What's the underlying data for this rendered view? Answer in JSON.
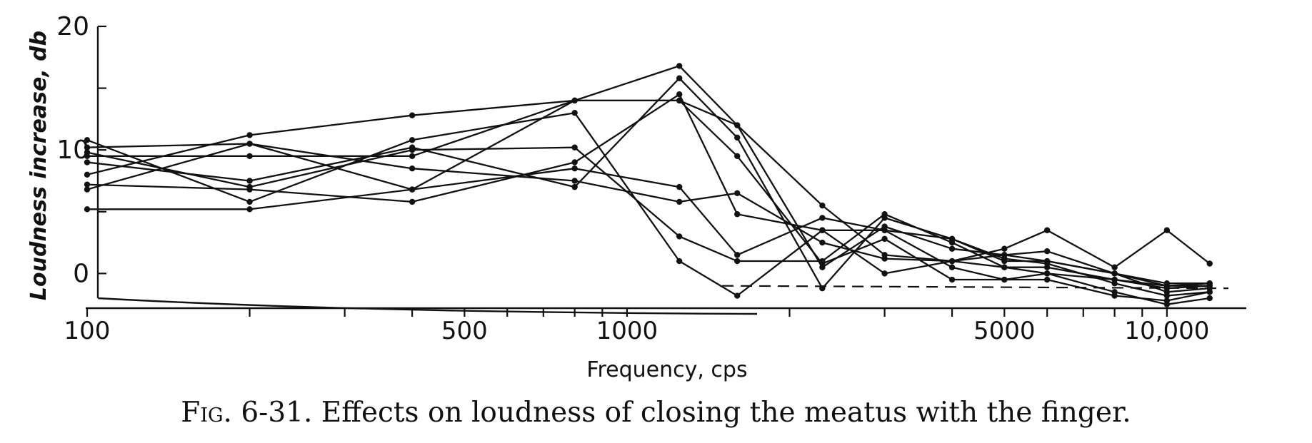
{
  "chart_data": {
    "type": "line",
    "title": "",
    "xlabel": "Frequency, cps",
    "ylabel": "Loudness increase, db",
    "x_scale": "log",
    "xlim": [
      100,
      13000
    ],
    "ylim": [
      -2,
      20
    ],
    "x_tick_labels": [
      {
        "value": 100,
        "label": "100"
      },
      {
        "value": 500,
        "label": "500"
      },
      {
        "value": 1000,
        "label": "1000"
      },
      {
        "value": 5000,
        "label": "5000"
      },
      {
        "value": 10000,
        "label": "10,000"
      }
    ],
    "x_minor_ticks": [
      200,
      300,
      400,
      600,
      700,
      800,
      900,
      2000,
      3000,
      4000,
      6000,
      7000,
      8000,
      9000
    ],
    "y_tick_labels": [
      {
        "value": 0,
        "label": "0"
      },
      {
        "value": 10,
        "label": "10"
      },
      {
        "value": 20,
        "label": "20"
      }
    ],
    "y_minor_ticks": [
      5,
      15
    ],
    "reference_line": {
      "style": "dashed",
      "x": [
        1500,
        13000
      ],
      "y": [
        -1.0,
        -1.2
      ]
    },
    "series": [
      {
        "x": [
          100,
          200,
          400,
          800,
          1250,
          1600,
          2300,
          3000,
          4000,
          5000,
          6000,
          8000,
          10000,
          12000
        ],
        "y": [
          10.8,
          5.8,
          10.8,
          13.0,
          1.0,
          -1.8,
          3.5,
          3.5,
          0.5,
          -0.5,
          -0.5,
          -1.8,
          -2.2,
          -1.5
        ]
      },
      {
        "x": [
          100,
          200,
          400,
          800,
          1250,
          1600,
          2300,
          3000,
          4000,
          5000,
          6000,
          8000,
          10000,
          12000
        ],
        "y": [
          10.2,
          10.5,
          6.8,
          14.0,
          14.0,
          12.0,
          5.5,
          1.5,
          1.0,
          0.5,
          0.5,
          -0.5,
          -1.0,
          -0.8
        ]
      },
      {
        "x": [
          100,
          200,
          400,
          800,
          1250,
          1600,
          2300,
          3000,
          4000,
          5000,
          6000,
          8000,
          10000,
          12000
        ],
        "y": [
          9.8,
          7.0,
          10.0,
          10.2,
          3.0,
          1.0,
          1.0,
          4.8,
          2.5,
          0.5,
          0.0,
          -0.5,
          -1.2,
          -1.0
        ]
      },
      {
        "x": [
          100,
          200,
          400,
          800,
          1250,
          1600,
          2300,
          3000,
          4000,
          5000,
          6000,
          8000,
          10000,
          12000
        ],
        "y": [
          9.5,
          9.5,
          9.5,
          14.0,
          16.8,
          12.0,
          0.5,
          3.8,
          2.0,
          1.5,
          1.8,
          0.0,
          -1.5,
          -1.2
        ]
      },
      {
        "x": [
          100,
          200,
          400,
          800,
          1250,
          1600,
          2300,
          3000,
          4000,
          5000,
          6000,
          8000,
          10000,
          12000
        ],
        "y": [
          9.0,
          7.5,
          10.2,
          7.0,
          15.8,
          11.0,
          -1.2,
          4.5,
          2.8,
          1.2,
          0.8,
          -0.8,
          -1.8,
          -1.5
        ]
      },
      {
        "x": [
          100,
          200,
          400,
          800,
          1250,
          1600,
          2300,
          3000,
          4000,
          5000,
          6000,
          8000,
          10000,
          12000
        ],
        "y": [
          8.0,
          11.2,
          12.8,
          14.0,
          14.0,
          9.5,
          0.8,
          2.8,
          -0.5,
          -0.5,
          0.0,
          -1.5,
          -2.5,
          -2.0
        ]
      },
      {
        "x": [
          100,
          200,
          400,
          800,
          1250,
          1600,
          2300,
          3000,
          4000,
          5000,
          6000,
          8000,
          10000,
          12000
        ],
        "y": [
          7.2,
          6.8,
          5.8,
          9.0,
          14.5,
          4.8,
          3.5,
          0.0,
          1.0,
          2.0,
          3.5,
          0.5,
          3.5,
          0.8
        ]
      },
      {
        "x": [
          100,
          200,
          400,
          800,
          1250,
          1600,
          2300,
          3000,
          4000,
          5000,
          6000,
          8000,
          10000,
          12000
        ],
        "y": [
          6.8,
          10.5,
          8.5,
          7.5,
          5.8,
          6.5,
          2.5,
          1.2,
          1.0,
          1.5,
          1.0,
          0.0,
          -0.8,
          -0.8
        ]
      },
      {
        "x": [
          100,
          200,
          400,
          800,
          1250,
          1600,
          2300,
          3000,
          4000,
          5000,
          6000,
          8000,
          10000,
          12000
        ],
        "y": [
          5.2,
          5.2,
          6.8,
          8.5,
          7.0,
          1.5,
          4.5,
          3.5,
          2.8,
          1.0,
          1.0,
          0.0,
          -1.0,
          -1.0
        ]
      }
    ]
  },
  "caption": {
    "label": "Fig.",
    "text": " 6-31. Effects on loudness of closing the meatus with the finger."
  }
}
